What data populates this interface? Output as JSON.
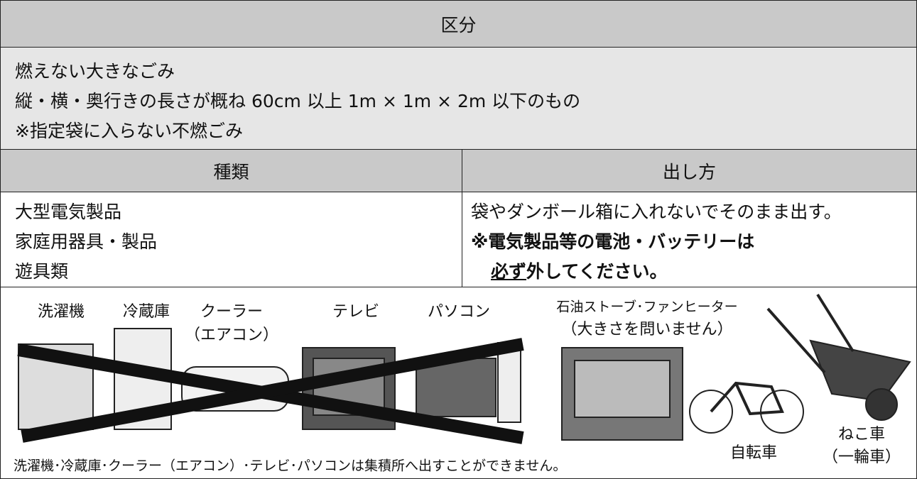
{
  "header": {
    "title": "区分"
  },
  "category": {
    "lines": [
      "燃えない大きなごみ",
      "縦・横・奥行きの長さが概ね 60cm 以上 1m × 1m × 2m 以下のもの",
      "※指定袋に入らない不燃ごみ"
    ]
  },
  "table": {
    "columns": [
      "種類",
      "出し方"
    ],
    "kinds": [
      "大型電気製品",
      "家庭用器具・製品",
      "遊具類"
    ],
    "method": {
      "text": "袋やダンボール箱に入れないでそのまま出す。",
      "warning_line1": "※電気製品等の電池・バッテリーは",
      "warning_underlined": "必ず",
      "warning_rest": "外してください。"
    }
  },
  "illustration": {
    "labels": [
      "洗濯機",
      "冷蔵庫",
      "クーラー",
      "（エアコン）",
      "テレビ",
      "パソコン",
      "石油ストーブ･ファンヒーター",
      "（大きさを問いません）",
      "自転車",
      "ねこ車",
      "（一輪車）"
    ],
    "note": "洗濯機･冷蔵庫･クーラー（エアコン）･テレビ･パソコンは集積所へ出すことができません。"
  }
}
